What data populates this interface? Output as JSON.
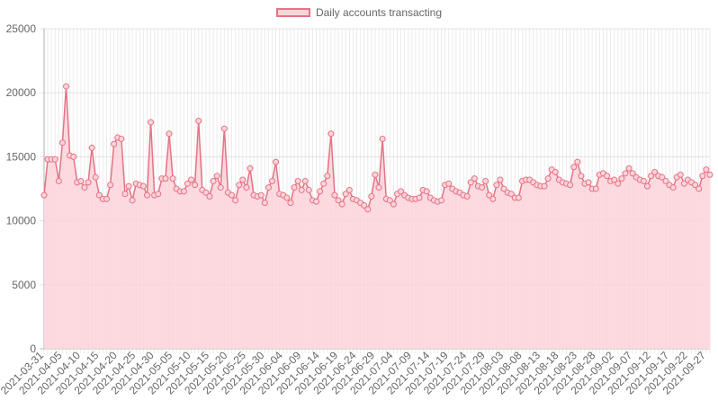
{
  "chart_data": {
    "type": "line",
    "fill": true,
    "legend": "top-center",
    "grid": true,
    "ylim": [
      0,
      25000
    ],
    "yticks": [
      0,
      5000,
      10000,
      15000,
      20000,
      25000
    ],
    "series": [
      {
        "name": "Daily accounts transacting",
        "color": "#e57385",
        "fill_color": "#fbd4da",
        "x": [
          "2021-03-31",
          "2021-04-01",
          "2021-04-02",
          "2021-04-03",
          "2021-04-04",
          "2021-04-05",
          "2021-04-06",
          "2021-04-07",
          "2021-04-08",
          "2021-04-09",
          "2021-04-10",
          "2021-04-11",
          "2021-04-12",
          "2021-04-13",
          "2021-04-14",
          "2021-04-15",
          "2021-04-16",
          "2021-04-17",
          "2021-04-18",
          "2021-04-19",
          "2021-04-20",
          "2021-04-21",
          "2021-04-22",
          "2021-04-23",
          "2021-04-24",
          "2021-04-25",
          "2021-04-26",
          "2021-04-27",
          "2021-04-28",
          "2021-04-29",
          "2021-04-30",
          "2021-05-01",
          "2021-05-02",
          "2021-05-03",
          "2021-05-04",
          "2021-05-05",
          "2021-05-06",
          "2021-05-07",
          "2021-05-08",
          "2021-05-09",
          "2021-05-10",
          "2021-05-11",
          "2021-05-12",
          "2021-05-13",
          "2021-05-14",
          "2021-05-15",
          "2021-05-16",
          "2021-05-17",
          "2021-05-18",
          "2021-05-19",
          "2021-05-20",
          "2021-05-21",
          "2021-05-22",
          "2021-05-23",
          "2021-05-24",
          "2021-05-25",
          "2021-05-26",
          "2021-05-27",
          "2021-05-28",
          "2021-05-29",
          "2021-05-30",
          "2021-05-31",
          "2021-06-01",
          "2021-06-02",
          "2021-06-03",
          "2021-06-04",
          "2021-06-05",
          "2021-06-06",
          "2021-06-07",
          "2021-06-08",
          "2021-06-09",
          "2021-06-10",
          "2021-06-11",
          "2021-06-12",
          "2021-06-13",
          "2021-06-14",
          "2021-06-15",
          "2021-06-16",
          "2021-06-17",
          "2021-06-18",
          "2021-06-19",
          "2021-06-20",
          "2021-06-21",
          "2021-06-22",
          "2021-06-23",
          "2021-06-24",
          "2021-06-25",
          "2021-06-26",
          "2021-06-27",
          "2021-06-28",
          "2021-06-29",
          "2021-06-30",
          "2021-07-01",
          "2021-07-02",
          "2021-07-03",
          "2021-07-04",
          "2021-07-05",
          "2021-07-06",
          "2021-07-07",
          "2021-07-08",
          "2021-07-09",
          "2021-07-10",
          "2021-07-11",
          "2021-07-12",
          "2021-07-13",
          "2021-07-14",
          "2021-07-15",
          "2021-07-16",
          "2021-07-17",
          "2021-07-18",
          "2021-07-19",
          "2021-07-20",
          "2021-07-21",
          "2021-07-22",
          "2021-07-23",
          "2021-07-24",
          "2021-07-25",
          "2021-07-26",
          "2021-07-27",
          "2021-07-28",
          "2021-07-29",
          "2021-07-30",
          "2021-07-31",
          "2021-08-01",
          "2021-08-02",
          "2021-08-03",
          "2021-08-04",
          "2021-08-05",
          "2021-08-06",
          "2021-08-07",
          "2021-08-08",
          "2021-08-09",
          "2021-08-10",
          "2021-08-11",
          "2021-08-12",
          "2021-08-13",
          "2021-08-14",
          "2021-08-15",
          "2021-08-16",
          "2021-08-17",
          "2021-08-18",
          "2021-08-19",
          "2021-08-20",
          "2021-08-21",
          "2021-08-22",
          "2021-08-23",
          "2021-08-24",
          "2021-08-25",
          "2021-08-26",
          "2021-08-27",
          "2021-08-28",
          "2021-08-29",
          "2021-08-30",
          "2021-08-31",
          "2021-09-01",
          "2021-09-02",
          "2021-09-03",
          "2021-09-04",
          "2021-09-05",
          "2021-09-06",
          "2021-09-07",
          "2021-09-08",
          "2021-09-09",
          "2021-09-10",
          "2021-09-11",
          "2021-09-12",
          "2021-09-13",
          "2021-09-14",
          "2021-09-15",
          "2021-09-16",
          "2021-09-17",
          "2021-09-18",
          "2021-09-19",
          "2021-09-20",
          "2021-09-21",
          "2021-09-22",
          "2021-09-23",
          "2021-09-24",
          "2021-09-25",
          "2021-09-26",
          "2021-09-27",
          "2021-09-28"
        ],
        "values": [
          12000,
          14800,
          14800,
          14800,
          13100,
          16100,
          20500,
          15100,
          15000,
          13000,
          13100,
          12600,
          13000,
          15700,
          13400,
          12000,
          11700,
          11700,
          12800,
          16000,
          16500,
          16400,
          12100,
          12700,
          11600,
          12900,
          12800,
          12700,
          12000,
          17700,
          12000,
          12100,
          13300,
          13300,
          16800,
          13300,
          12500,
          12300,
          12300,
          12900,
          13200,
          12800,
          17800,
          12400,
          12200,
          11900,
          13100,
          13500,
          12600,
          17200,
          12200,
          12000,
          11600,
          12800,
          13200,
          12600,
          14100,
          12000,
          11900,
          12000,
          11400,
          12600,
          13100,
          14600,
          12100,
          12000,
          11800,
          11400,
          12600,
          13100,
          12400,
          13100,
          12400,
          11600,
          11500,
          12300,
          12900,
          13500,
          16800,
          12000,
          11600,
          11300,
          12100,
          12400,
          11700,
          11600,
          11400,
          11200,
          10900,
          11900,
          13600,
          12600,
          16400,
          11700,
          11600,
          11300,
          12100,
          12300,
          12000,
          11800,
          11700,
          11700,
          11800,
          12400,
          12300,
          11800,
          11600,
          11500,
          11600,
          12800,
          12900,
          12500,
          12300,
          12200,
          12000,
          11900,
          13000,
          13300,
          12700,
          12600,
          13100,
          12000,
          11700,
          12800,
          13200,
          12500,
          12200,
          12100,
          11800,
          11800,
          13100,
          13200,
          13200,
          13000,
          12800,
          12700,
          12700,
          13300,
          14000,
          13800,
          13200,
          13000,
          12900,
          12800,
          14200,
          14600,
          13500,
          12900,
          13000,
          12500,
          12500,
          13600,
          13700,
          13500,
          13100,
          13200,
          12900,
          13300,
          13700,
          14100,
          13700,
          13400,
          13200,
          13100,
          12700,
          13500,
          13800,
          13500,
          13400,
          13100,
          12800,
          12600,
          13400,
          13600,
          12900,
          13200,
          13000,
          12800,
          12500,
          13500,
          14000,
          13600
        ]
      }
    ]
  }
}
